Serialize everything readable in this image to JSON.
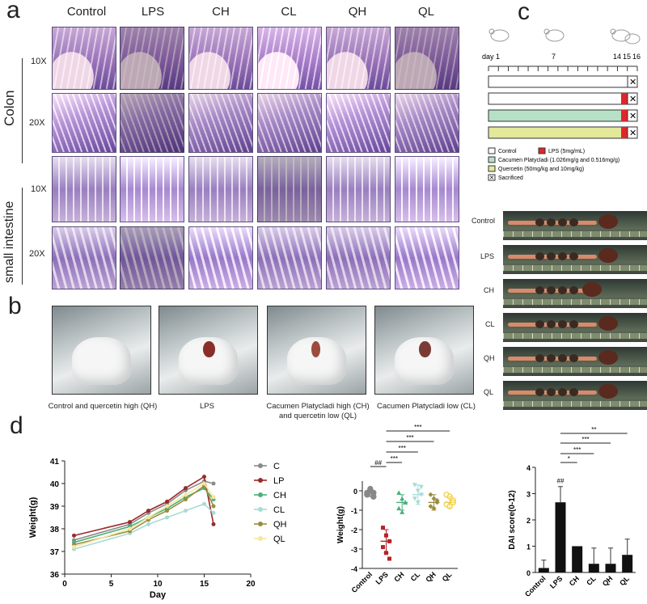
{
  "panel_a": {
    "letter": "a",
    "columns": [
      "Control",
      "LPS",
      "CH",
      "CL",
      "QH",
      "QL"
    ],
    "colon_label": "Colon",
    "small_intestine_label": "small intestine",
    "mag_10x": "10X",
    "mag_20x": "20X"
  },
  "panel_b": {
    "letter": "b",
    "captions": [
      "Control and quercetin high (QH)",
      "LPS",
      "Cacumen Platycladi high (CH)",
      "and quercetin low (QL)",
      "Cacumen Platycladi low (CL)"
    ]
  },
  "panel_c": {
    "letter": "c",
    "timeline_labels": [
      "day 1",
      "7",
      "14",
      "15",
      "16"
    ],
    "bar_colors": [
      "#ffffff",
      "#ffffff",
      "#b7e1c6",
      "#e3e89a"
    ],
    "lps_color": "#e0262b",
    "legend": {
      "control": "Control",
      "lps": "LPS (5mg/mL)",
      "cp": "Cacumen Platycladi   (1.026mg/g and 0.516mg/g)",
      "quercetin": "Quercetin   (50mg/kg and 10mg/kg)",
      "sacrificed": "Sacrificed"
    },
    "intestine_labels": [
      "Control",
      "LPS",
      "CH",
      "CL",
      "QH",
      "QL"
    ]
  },
  "panel_d": {
    "letter": "d",
    "weight_chart": {
      "type": "line",
      "xlabel": "Day",
      "ylabel": "Weight(g)",
      "xticks": [
        "0",
        "5",
        "10",
        "15",
        "20"
      ],
      "yticks": [
        "36",
        "37",
        "38",
        "39",
        "40",
        "41"
      ],
      "xlim": [
        0,
        20
      ],
      "ylim": [
        36,
        41
      ],
      "x": [
        1,
        7,
        9,
        11,
        13,
        15,
        16
      ],
      "series": [
        {
          "name": "C",
          "color": "#8a8a8a",
          "values": [
            37.5,
            38.2,
            38.7,
            39.1,
            39.7,
            40.1,
            40.0
          ]
        },
        {
          "name": "LP",
          "color": "#9a2a2a",
          "values": [
            37.7,
            38.3,
            38.8,
            39.2,
            39.8,
            40.3,
            38.2
          ]
        },
        {
          "name": "CH",
          "color": "#49b07a",
          "values": [
            37.4,
            38.1,
            38.5,
            38.9,
            39.4,
            39.8,
            39.3
          ]
        },
        {
          "name": "CL",
          "color": "#a8dcd6",
          "values": [
            37.1,
            37.8,
            38.2,
            38.5,
            38.8,
            39.1,
            38.7
          ]
        },
        {
          "name": "QH",
          "color": "#9b8c3e",
          "values": [
            37.3,
            37.9,
            38.4,
            38.8,
            39.3,
            39.9,
            39.0
          ]
        },
        {
          "name": "QL",
          "color": "#f5e6a0",
          "values": [
            37.2,
            38.0,
            38.5,
            39.0,
            39.5,
            40.0,
            39.4
          ]
        }
      ]
    },
    "weight_change_chart": {
      "type": "scatter",
      "ylabel": "Weight(g)",
      "categories": [
        "Control",
        "LPS",
        "CH",
        "CL",
        "QH",
        "QL"
      ],
      "yticks": [
        "0",
        "-1",
        "-2",
        "-3",
        "-4"
      ],
      "ylim": [
        -4,
        0.5
      ],
      "means": [
        -0.1,
        -2.6,
        -0.6,
        -0.2,
        -0.6,
        -0.6
      ],
      "sds": [
        0.2,
        0.6,
        0.4,
        0.5,
        0.4,
        0.3
      ],
      "colors": [
        "#888888",
        "#b5232a",
        "#49b07a",
        "#a8dcd6",
        "#9b8c3e",
        "#f0d250"
      ],
      "points": [
        [
          -0.1,
          0.0,
          -0.3,
          -0.2,
          0.1,
          -0.1
        ],
        [
          -1.9,
          -2.3,
          -2.6,
          -2.9,
          -3.2,
          -3.5
        ],
        [
          -0.1,
          -0.4,
          -0.6,
          -0.9,
          -1.1,
          -0.6
        ],
        [
          0.3,
          0.0,
          -0.2,
          -0.4,
          -0.6,
          0.2
        ],
        [
          -0.2,
          -0.4,
          -0.6,
          -0.8,
          -0.9,
          -0.5
        ],
        [
          -0.2,
          -0.3,
          -0.5,
          -0.7,
          -0.8,
          -0.6
        ]
      ],
      "sig_labels": [
        "##",
        "***",
        "***",
        "***",
        "***"
      ]
    },
    "dai_chart": {
      "type": "bar",
      "ylabel": "DAI score(0-12)",
      "categories": [
        "Control",
        "LPS",
        "CH",
        "CL",
        "QH",
        "QL"
      ],
      "values": [
        0.17,
        2.67,
        1.0,
        0.33,
        0.33,
        0.67
      ],
      "errors": [
        0.3,
        0.6,
        0.0,
        0.6,
        0.6,
        0.6
      ],
      "yticks": [
        "0",
        "1",
        "2",
        "3",
        "4"
      ],
      "ylim": [
        0,
        4
      ],
      "sig_labels": [
        "##",
        "*",
        "***",
        "***",
        "**"
      ]
    }
  }
}
